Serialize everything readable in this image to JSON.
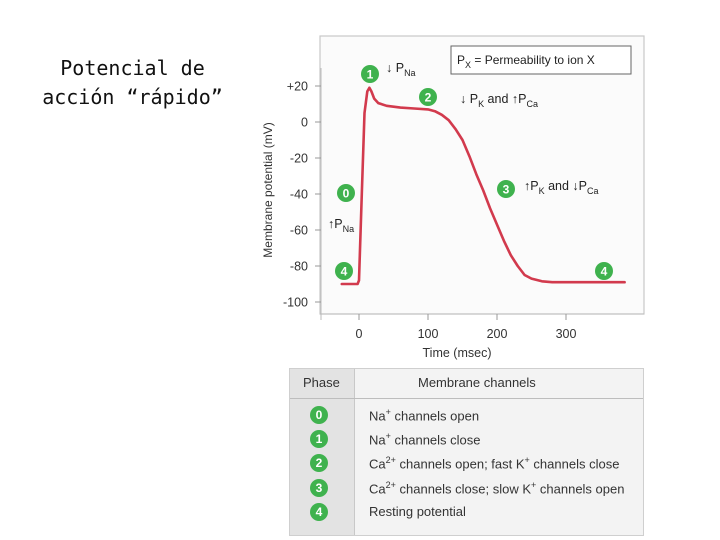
{
  "slide": {
    "title_line1": "Potencial de",
    "title_line2": "acción “rápido”"
  },
  "colors": {
    "trace": "#d23a4d",
    "badge": "#3fb24e",
    "frame": "#c8c8c8",
    "plot_bg": "#fbfbfb"
  },
  "chart_data": {
    "type": "line",
    "xlabel": "Time (msec)",
    "ylabel": "Membrane potential (mV)",
    "xlim": [
      -25,
      385
    ],
    "ylim": [
      -110,
      30
    ],
    "x_ticks": [
      "0",
      "100",
      "200",
      "300"
    ],
    "y_ticks": [
      "+20",
      "0",
      "-20",
      "-40",
      "-60",
      "-80",
      "-100"
    ],
    "legend": {
      "p": "P",
      "x": "X",
      "text": " = Permeability to ion X"
    },
    "series": [
      {
        "values": [
          [
            -25,
            -90
          ],
          [
            -2,
            -90
          ],
          [
            0,
            -88
          ],
          [
            4,
            -40
          ],
          [
            8,
            5
          ],
          [
            12,
            17
          ],
          [
            15,
            19
          ],
          [
            18,
            17
          ],
          [
            22,
            13
          ],
          [
            28,
            10.5
          ],
          [
            40,
            9
          ],
          [
            60,
            8
          ],
          [
            80,
            7.5
          ],
          [
            100,
            7
          ],
          [
            110,
            6
          ],
          [
            120,
            4
          ],
          [
            130,
            1
          ],
          [
            140,
            -4
          ],
          [
            150,
            -10
          ],
          [
            160,
            -19
          ],
          [
            170,
            -29
          ],
          [
            180,
            -38
          ],
          [
            190,
            -48
          ],
          [
            200,
            -57
          ],
          [
            210,
            -66
          ],
          [
            220,
            -74
          ],
          [
            230,
            -80
          ],
          [
            240,
            -85
          ],
          [
            250,
            -87
          ],
          [
            265,
            -88.5
          ],
          [
            280,
            -89
          ],
          [
            300,
            -89
          ],
          [
            385,
            -89
          ]
        ]
      }
    ],
    "annotations": [
      {
        "phase": "1",
        "x": 14,
        "y": 19,
        "text": [
          {
            "t": "↓ P",
            "s": "normal"
          },
          {
            "t": "Na",
            "s": "sub"
          }
        ]
      },
      {
        "phase": "2",
        "x": 100,
        "y": 7,
        "text": [
          {
            "t": "↓ P",
            "s": "normal"
          },
          {
            "t": "K",
            "s": "sub"
          },
          {
            "t": " and ",
            "s": "normal"
          },
          {
            "t": "↑P",
            "s": "normal"
          },
          {
            "t": "Ca",
            "s": "sub"
          }
        ]
      },
      {
        "phase": "3",
        "x": 200,
        "y": -56,
        "text": [
          {
            "t": "↑P",
            "s": "normal"
          },
          {
            "t": "K",
            "s": "sub"
          },
          {
            "t": " and ",
            "s": "normal"
          },
          {
            "t": "↓P",
            "s": "normal"
          },
          {
            "t": "Ca",
            "s": "sub"
          }
        ]
      },
      {
        "phase": "0",
        "x": 2,
        "y": -43,
        "text": [
          {
            "t": "↑P",
            "s": "normal"
          },
          {
            "t": "Na",
            "s": "sub"
          }
        ]
      },
      {
        "phase": "4",
        "x": -25,
        "y": -90,
        "text": []
      },
      {
        "phase": "4",
        "x": 350,
        "y": -89,
        "text": []
      }
    ]
  },
  "phase_table": {
    "header_phase": "Phase",
    "header_channels": "Membrane channels",
    "rows": [
      {
        "phase": "0",
        "channels": [
          {
            "t": "Na",
            "s": "normal"
          },
          {
            "t": "+",
            "s": "sup"
          },
          {
            "t": " channels open",
            "s": "normal"
          }
        ]
      },
      {
        "phase": "1",
        "channels": [
          {
            "t": "Na",
            "s": "normal"
          },
          {
            "t": "+",
            "s": "sup"
          },
          {
            "t": " channels close",
            "s": "normal"
          }
        ]
      },
      {
        "phase": "2",
        "channels": [
          {
            "t": "Ca",
            "s": "normal"
          },
          {
            "t": "2+",
            "s": "sup"
          },
          {
            "t": " channels open; fast K",
            "s": "normal"
          },
          {
            "t": "+",
            "s": "sup"
          },
          {
            "t": " channels close",
            "s": "normal"
          }
        ]
      },
      {
        "phase": "3",
        "channels": [
          {
            "t": "Ca",
            "s": "normal"
          },
          {
            "t": "2+",
            "s": "sup"
          },
          {
            "t": " channels close; slow K",
            "s": "normal"
          },
          {
            "t": "+",
            "s": "sup"
          },
          {
            "t": " channels open",
            "s": "normal"
          }
        ]
      },
      {
        "phase": "4",
        "channels": [
          {
            "t": "Resting potential",
            "s": "normal"
          }
        ]
      }
    ]
  }
}
